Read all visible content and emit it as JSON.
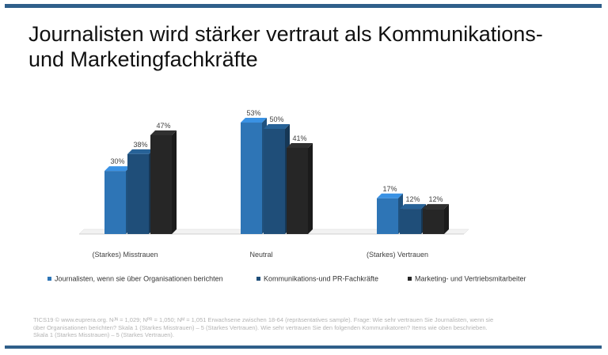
{
  "title": {
    "line1": "Journalisten wird stärker vertraut als Kommunikations-",
    "line2": "und Marketingfachkräfte"
  },
  "chart_data": {
    "type": "bar",
    "categories": [
      "(Starkes) Misstrauen",
      "Neutral",
      "(Starkes) Vertrauen"
    ],
    "series": [
      {
        "name": "Journalisten, wenn sie über Organisationen berichten",
        "values": [
          30,
          53,
          17
        ],
        "labels": [
          "30%",
          "53%",
          "17%"
        ],
        "color": "#2e75b6"
      },
      {
        "name": "Kommunikations-und PR-Fachkräfte",
        "values": [
          38,
          50,
          12
        ],
        "labels": [
          "38%",
          "50%",
          "12%"
        ],
        "color": "#1f4e79"
      },
      {
        "name": "Marketing- und Vertriebsmitarbeiter",
        "values": [
          47,
          41,
          12
        ],
        "labels": [
          "47%",
          "41%",
          "12%"
        ],
        "color": "#262626"
      }
    ],
    "ylim": [
      0,
      60
    ],
    "grid": false,
    "legend": "bottom"
  },
  "footnote": {
    "line1": "TICS19 © www.euprera.org. Nᴶᴺ = 1,029; Nᴾᴿ = 1,050; Nᴹ = 1,051 Erwachsene zwischen 18-64 (repräsentatives sample). Frage: Wie sehr vertrauen Sie Journalisten, wenn sie",
    "line2": "über Organisationen berichten? Skala 1 (Starkes Misstrauen) – 5 (Starkes Vertrauen). Wie sehr vertrauen Sie den folgenden Kommunikatoren? Items wie oben beschrieben.",
    "line3": "Skala 1 (Starkes Misstrauen) – 5 (Starkes Vertrauen)."
  }
}
